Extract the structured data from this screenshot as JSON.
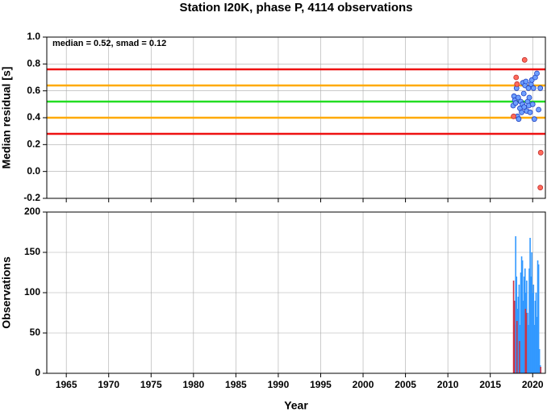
{
  "title": "Station I20K, phase P, 4114 observations",
  "chart_data": [
    {
      "type": "scatter",
      "ylabel": "Median residual [s]",
      "annotation": "median = 0.52, smad = 0.12",
      "xlim": [
        1962.7,
        2021.5
      ],
      "ylim": [
        -0.2,
        1.0
      ],
      "xticks": [
        1965,
        1970,
        1975,
        1980,
        1985,
        1990,
        1995,
        2000,
        2005,
        2010,
        2015,
        2020
      ],
      "yticks": [
        -0.2,
        {
          "value": 0,
          "label": "0.0"
        },
        0.2,
        0.4,
        0.6,
        0.8,
        {
          "value": 1,
          "label": "1.0"
        }
      ],
      "grid": true,
      "reference_lines": [
        {
          "value": 0.76,
          "color": "#ee1111"
        },
        {
          "value": 0.64,
          "color": "#ffaa00"
        },
        {
          "value": 0.52,
          "color": "#22dd22"
        },
        {
          "value": 0.4,
          "color": "#ffaa00"
        },
        {
          "value": 0.28,
          "color": "#ee1111"
        }
      ],
      "series": [
        {
          "color": "#6fa0ff",
          "x": [
            2017.7,
            2017.8,
            2017.9,
            2018.0,
            2018.1,
            2018.2,
            2018.3,
            2018.35,
            2018.5,
            2018.6,
            2018.7,
            2018.8,
            2018.85,
            2018.95,
            2019.0,
            2019.1,
            2019.2,
            2019.3,
            2019.4,
            2019.5,
            2019.55,
            2019.6,
            2019.7,
            2019.8,
            2019.9,
            2020.0,
            2020.1,
            2020.2,
            2020.3,
            2020.5,
            2020.7,
            2020.9
          ],
          "values": [
            0.49,
            0.56,
            0.53,
            0.51,
            0.62,
            0.41,
            0.55,
            0.39,
            0.47,
            0.52,
            0.44,
            0.5,
            0.66,
            0.58,
            0.48,
            0.64,
            0.67,
            0.45,
            0.52,
            0.62,
            0.49,
            0.55,
            0.44,
            0.65,
            0.68,
            0.5,
            0.62,
            0.39,
            0.7,
            0.73,
            0.46,
            0.62
          ]
        },
        {
          "color": "#ff6a5a",
          "x": [
            2017.75,
            2018.05,
            2018.15,
            2019.05,
            2020.9,
            2020.95
          ],
          "values": [
            0.41,
            0.7,
            0.65,
            0.83,
            -0.12,
            0.14
          ]
        }
      ]
    },
    {
      "type": "bar",
      "xlabel": "Year",
      "ylabel": "Observations",
      "xlim": [
        1962.7,
        2021.5
      ],
      "ylim": [
        0,
        200
      ],
      "xticks": [
        1965,
        1970,
        1975,
        1980,
        1985,
        1990,
        1995,
        2000,
        2005,
        2010,
        2015,
        2020
      ],
      "yticks": [
        0,
        50,
        100,
        150,
        200
      ],
      "grid": true,
      "series": [
        {
          "color": "#3399ff",
          "x": [
            2017.9,
            2018.0,
            2018.05,
            2018.1,
            2018.2,
            2018.3,
            2018.4,
            2018.5,
            2018.6,
            2018.7,
            2018.75,
            2018.8,
            2018.9,
            2019.0,
            2019.1,
            2019.2,
            2019.3,
            2019.4,
            2019.5,
            2019.6,
            2019.7,
            2019.8,
            2019.9,
            2020.0,
            2020.1,
            2020.2,
            2020.3,
            2020.4,
            2020.5,
            2020.6,
            2020.7,
            2020.8,
            2020.9
          ],
          "values": [
            60,
            170,
            100,
            120,
            80,
            95,
            110,
            60,
            125,
            145,
            135,
            140,
            90,
            120,
            130,
            100,
            115,
            75,
            60,
            130,
            168,
            120,
            150,
            100,
            110,
            60,
            90,
            100,
            70,
            140,
            135,
            30,
            10
          ]
        },
        {
          "color": "#cc3344",
          "x": [
            2017.75,
            2017.85,
            2018.15,
            2018.45,
            2019.15,
            2019.25,
            2020.95
          ],
          "values": [
            115,
            90,
            65,
            40,
            80,
            75,
            8
          ]
        }
      ]
    }
  ]
}
